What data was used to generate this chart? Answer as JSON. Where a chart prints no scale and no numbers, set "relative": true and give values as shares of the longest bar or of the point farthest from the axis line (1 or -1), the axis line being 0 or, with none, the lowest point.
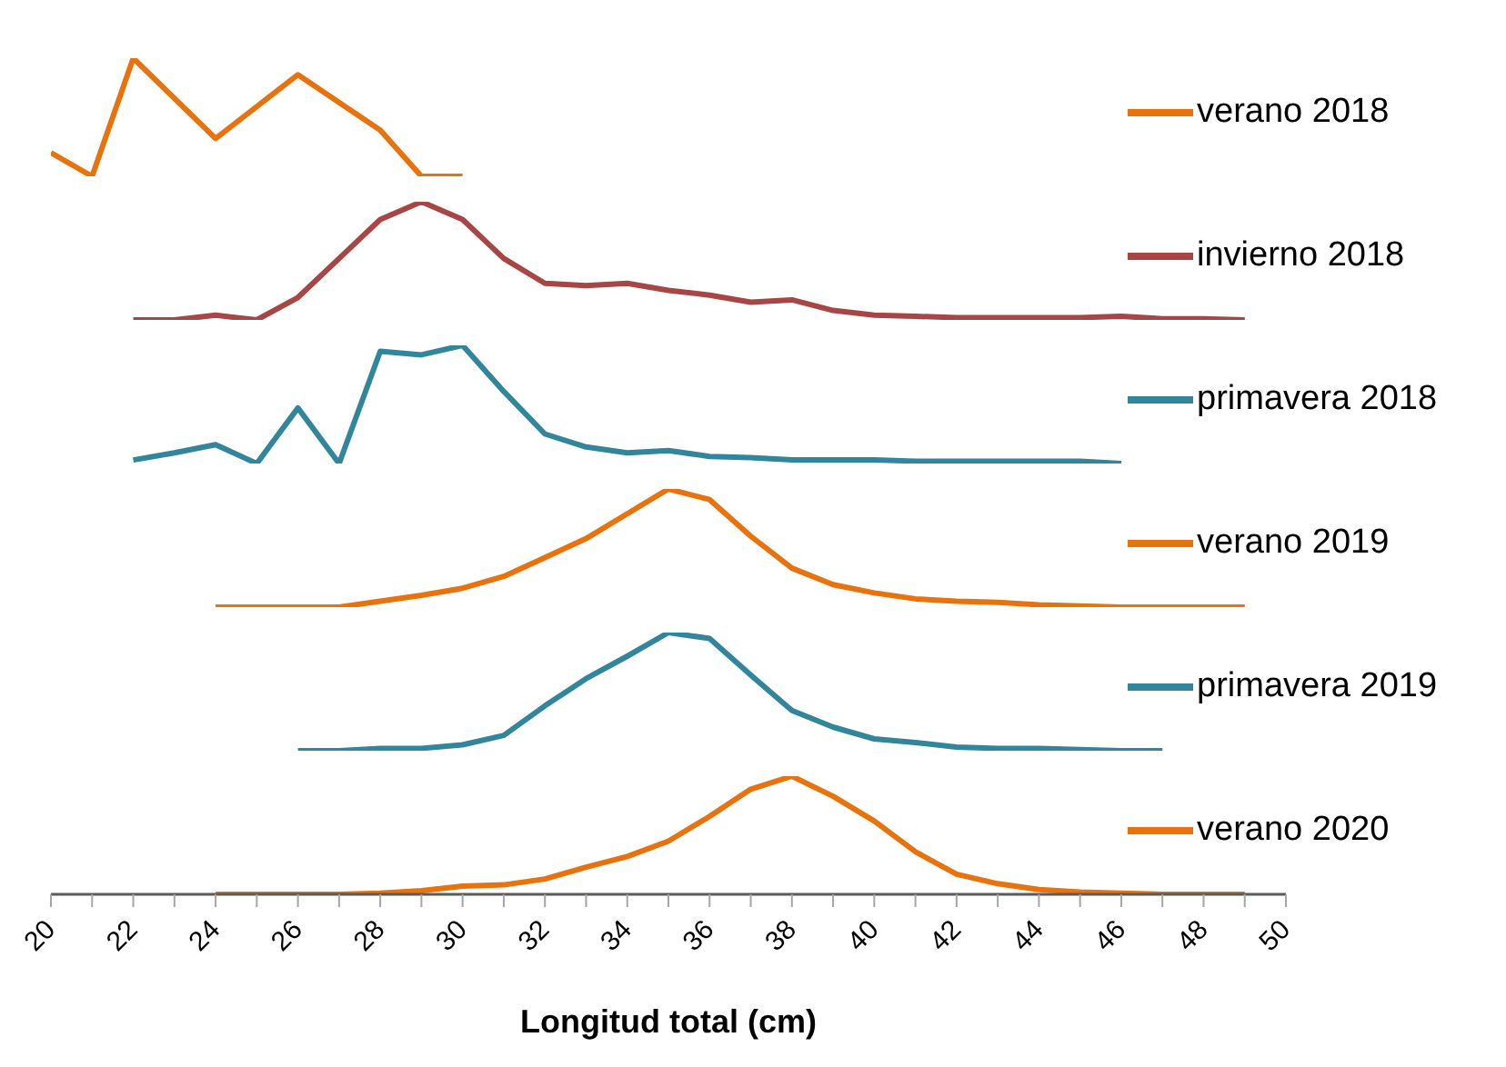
{
  "chart_data": [
    {
      "type": "line",
      "relative": true,
      "legend": "right",
      "tick_labels": false,
      "xlim": [
        20,
        50
      ],
      "x": [
        20,
        21,
        22,
        24,
        26,
        28,
        29,
        30
      ],
      "series": [
        {
          "name": "verano 2018",
          "color": "#e8720c",
          "values": [
            0.2,
            0,
            1,
            0.32,
            0.86,
            0.39,
            0,
            0
          ]
        }
      ]
    },
    {
      "type": "line",
      "relative": true,
      "legend": "right",
      "tick_labels": false,
      "xlim": [
        20,
        50
      ],
      "x": [
        22,
        23,
        24,
        25,
        26,
        27,
        28,
        29,
        30,
        31,
        32,
        33,
        34,
        35,
        36,
        37,
        38,
        39,
        40,
        41,
        42,
        43,
        44,
        45,
        46,
        47,
        48,
        49
      ],
      "series": [
        {
          "name": "invierno 2018",
          "color": "#a84545",
          "values": [
            0,
            0,
            0.04,
            0,
            0.19,
            0.52,
            0.85,
            1,
            0.85,
            0.52,
            0.31,
            0.29,
            0.31,
            0.25,
            0.21,
            0.15,
            0.17,
            0.08,
            0.04,
            0.03,
            0.02,
            0.02,
            0.02,
            0.02,
            0.03,
            0.01,
            0.01,
            0
          ]
        }
      ]
    },
    {
      "type": "line",
      "relative": true,
      "legend": "right",
      "tick_labels": false,
      "xlim": [
        20,
        50
      ],
      "x": [
        22,
        23,
        24,
        25,
        26,
        27,
        28,
        29,
        30,
        31,
        32,
        33,
        34,
        35,
        36,
        37,
        38,
        39,
        40,
        41,
        42,
        43,
        44,
        45,
        46
      ],
      "series": [
        {
          "name": "primavera 2018",
          "color": "#31869b",
          "values": [
            0.03,
            0.09,
            0.16,
            0,
            0.47,
            0,
            0.95,
            0.92,
            1,
            0.61,
            0.25,
            0.14,
            0.09,
            0.11,
            0.06,
            0.05,
            0.03,
            0.03,
            0.03,
            0.02,
            0.02,
            0.02,
            0.02,
            0.02,
            0
          ]
        }
      ]
    },
    {
      "type": "line",
      "relative": true,
      "legend": "right",
      "tick_labels": false,
      "xlim": [
        20,
        50
      ],
      "x": [
        24,
        25,
        26,
        27,
        28,
        29,
        30,
        31,
        32,
        33,
        34,
        35,
        36,
        37,
        38,
        39,
        40,
        41,
        42,
        43,
        44,
        45,
        46,
        47,
        48,
        49
      ],
      "series": [
        {
          "name": "verano 2019",
          "color": "#e8720c",
          "values": [
            0,
            0,
            0,
            0,
            0.05,
            0.1,
            0.16,
            0.26,
            0.42,
            0.58,
            0.79,
            1,
            0.91,
            0.6,
            0.33,
            0.19,
            0.12,
            0.07,
            0.05,
            0.04,
            0.02,
            0.01,
            0,
            0,
            0,
            0
          ]
        }
      ]
    },
    {
      "type": "line",
      "relative": true,
      "legend": "right",
      "tick_labels": false,
      "xlim": [
        20,
        50
      ],
      "x": [
        26,
        27,
        28,
        29,
        30,
        31,
        32,
        33,
        34,
        35,
        36,
        37,
        38,
        39,
        40,
        41,
        42,
        43,
        44,
        45,
        46,
        47
      ],
      "series": [
        {
          "name": "primavera 2019",
          "color": "#31869b",
          "values": [
            0,
            0,
            0.02,
            0.02,
            0.05,
            0.13,
            0.38,
            0.61,
            0.8,
            1,
            0.95,
            0.64,
            0.34,
            0.2,
            0.1,
            0.07,
            0.03,
            0.02,
            0.02,
            0.01,
            0,
            0
          ]
        }
      ]
    },
    {
      "type": "line",
      "relative": true,
      "legend": "right",
      "tick_labels": "x",
      "xlabel": "Longitud total (cm)",
      "xlim": [
        20,
        50
      ],
      "xticks": [
        20,
        {
          "value": 21,
          "label": null
        },
        22,
        {
          "value": 23,
          "label": null
        },
        24,
        {
          "value": 25,
          "label": null
        },
        26,
        {
          "value": 27,
          "label": null
        },
        28,
        {
          "value": 29,
          "label": null
        },
        30,
        {
          "value": 31,
          "label": null
        },
        32,
        {
          "value": 33,
          "label": null
        },
        34,
        {
          "value": 35,
          "label": null
        },
        36,
        {
          "value": 37,
          "label": null
        },
        38,
        {
          "value": 39,
          "label": null
        },
        40,
        {
          "value": 41,
          "label": null
        },
        42,
        {
          "value": 43,
          "label": null
        },
        44,
        {
          "value": 45,
          "label": null
        },
        46,
        {
          "value": 47,
          "label": null
        },
        48,
        {
          "value": 49,
          "label": null
        },
        50
      ],
      "x": [
        24,
        25,
        26,
        27,
        28,
        29,
        30,
        31,
        32,
        33,
        34,
        35,
        36,
        37,
        38,
        39,
        40,
        41,
        42,
        43,
        44,
        45,
        46,
        47,
        48,
        49
      ],
      "series": [
        {
          "name": "verano 2020",
          "color": "#e8720c",
          "values": [
            0,
            0,
            0,
            0,
            0.01,
            0.03,
            0.07,
            0.08,
            0.13,
            0.23,
            0.32,
            0.45,
            0.66,
            0.89,
            1,
            0.83,
            0.62,
            0.36,
            0.17,
            0.09,
            0.04,
            0.02,
            0.01,
            0,
            0,
            0
          ]
        }
      ]
    }
  ]
}
